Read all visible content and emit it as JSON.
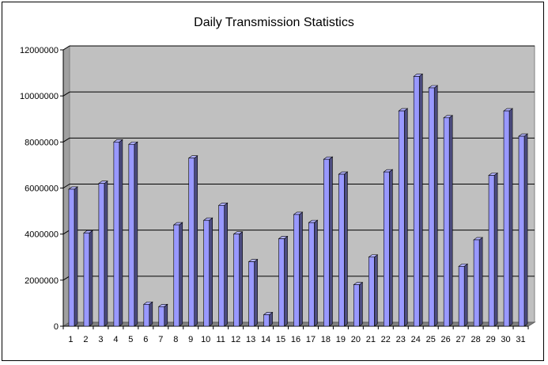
{
  "chart_data": {
    "type": "bar",
    "title": "Daily Transmission Statistics",
    "xlabel": "",
    "ylabel": "",
    "categories": [
      "1",
      "2",
      "3",
      "4",
      "5",
      "6",
      "7",
      "8",
      "9",
      "10",
      "11",
      "12",
      "13",
      "14",
      "15",
      "16",
      "17",
      "18",
      "19",
      "20",
      "21",
      "22",
      "23",
      "24",
      "25",
      "26",
      "27",
      "28",
      "29",
      "30",
      "31"
    ],
    "values": [
      5950000,
      4050000,
      6200000,
      8000000,
      7900000,
      950000,
      850000,
      4400000,
      7300000,
      4600000,
      5250000,
      4000000,
      2800000,
      500000,
      3800000,
      4850000,
      4500000,
      7250000,
      6600000,
      1800000,
      3000000,
      6700000,
      9350000,
      10850000,
      10350000,
      9050000,
      2600000,
      3750000,
      6550000,
      9350000,
      8250000
    ],
    "ylim": [
      0,
      12000000
    ],
    "yticks": [
      0,
      2000000,
      4000000,
      6000000,
      8000000,
      10000000,
      12000000
    ],
    "ytick_labels": [
      "0",
      "2000000",
      "4000000",
      "6000000",
      "8000000",
      "10000000",
      "12000000"
    ],
    "grid": true,
    "legend": "none",
    "colors": {
      "bar_front": "#9999ff",
      "bar_side": "#4c4c80",
      "bar_top": "#b3b3ff",
      "plot_wall": "#c0c0c0",
      "plot_floor": "#808080",
      "gridline": "#000000"
    }
  }
}
